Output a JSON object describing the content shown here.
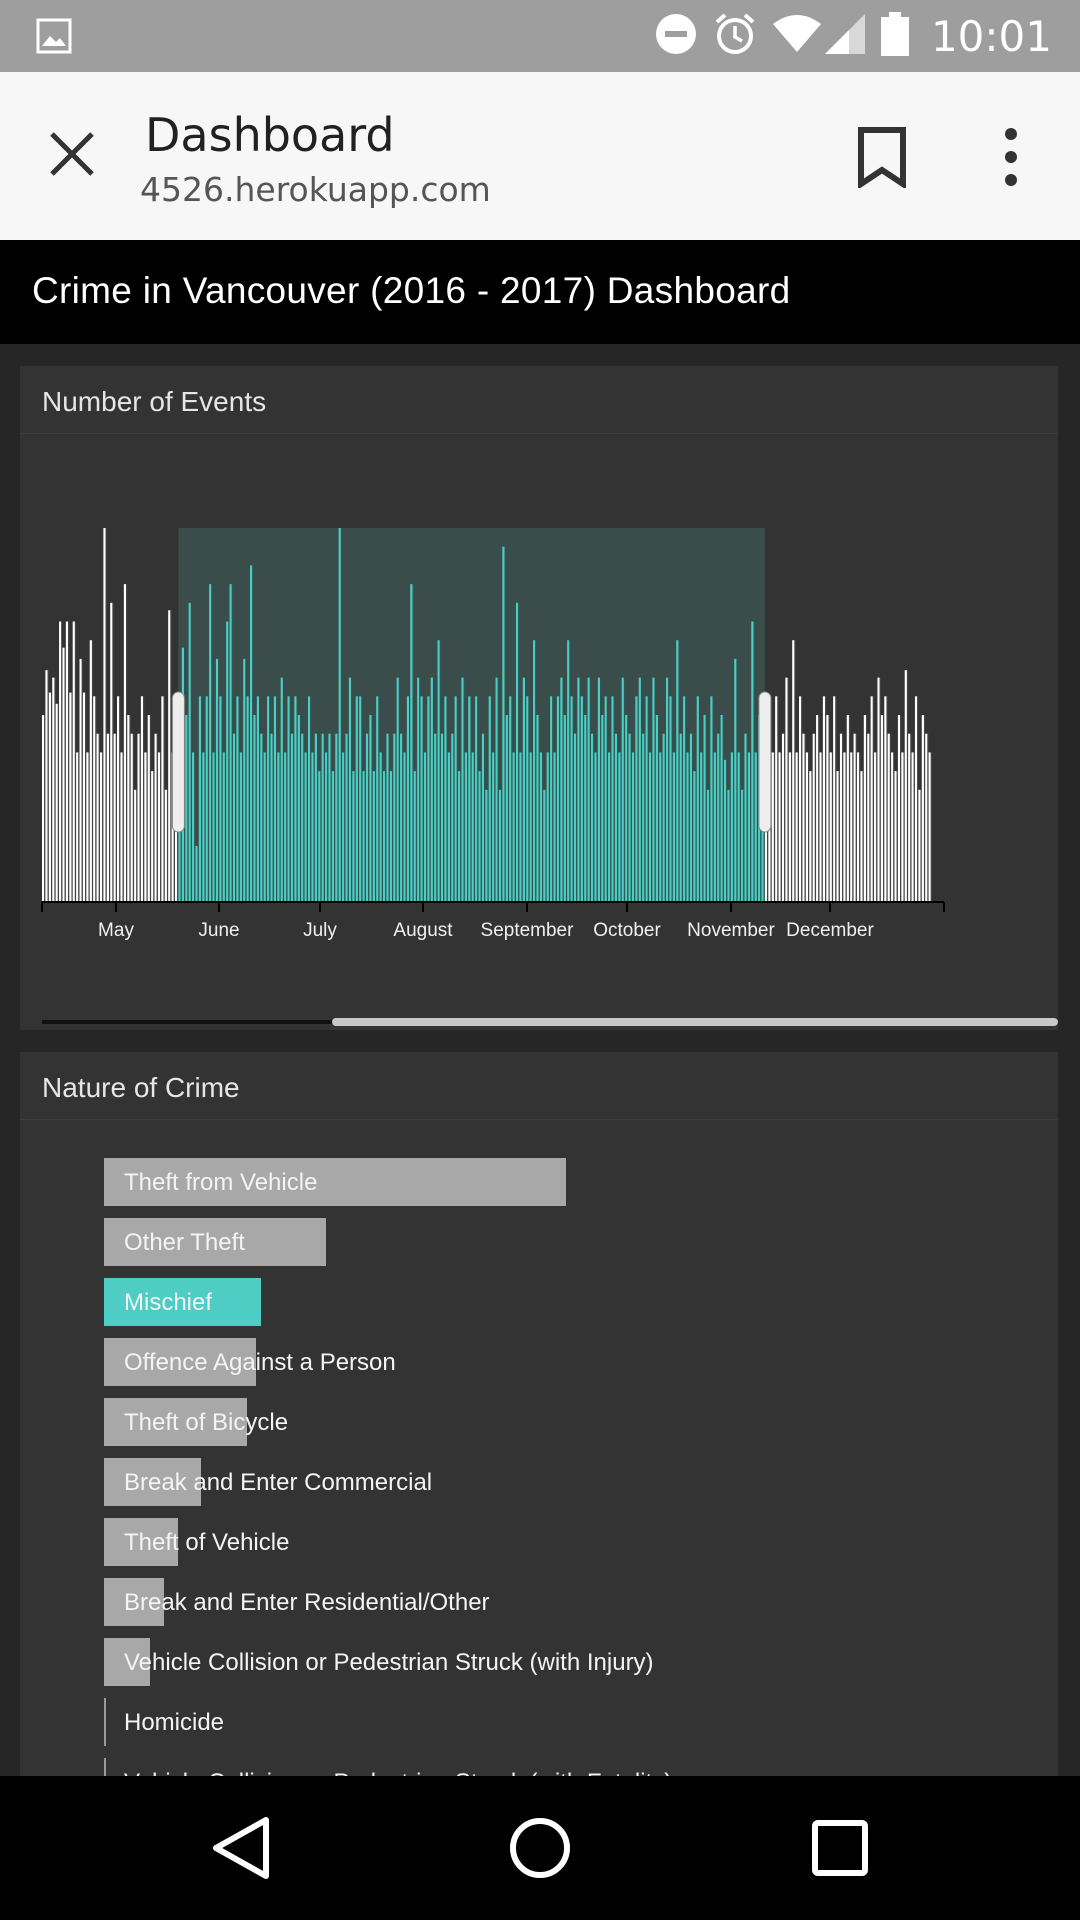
{
  "status_bar": {
    "time": "10:01",
    "icons": [
      "image-icon",
      "do-not-disturb-icon",
      "alarm-icon",
      "wifi-icon",
      "signal-icon",
      "battery-icon"
    ]
  },
  "browser": {
    "page_title": "Dashboard",
    "url": "4526.herokuapp.com",
    "icons": [
      "close-icon",
      "bookmark-icon",
      "overflow-menu-icon"
    ]
  },
  "app": {
    "title": "Crime in Vancouver (2016 - 2017) Dashboard"
  },
  "events_card": {
    "title": "Number of Events"
  },
  "nature_card": {
    "title": "Nature of Crime"
  },
  "colors": {
    "accent": "#4ecdc4",
    "bar_default": "#a8a8a8",
    "card_bg": "#333333",
    "page_bg": "#262626"
  },
  "chart_data": [
    {
      "type": "bar",
      "title": "Number of Events",
      "x_tick_labels": [
        "May",
        "June",
        "July",
        "August",
        "September",
        "October",
        "November",
        "December"
      ],
      "brush_selection": [
        "June",
        "late October"
      ],
      "daily_values_relative": [
        0.5,
        0.62,
        0.56,
        0.6,
        0.53,
        0.75,
        0.68,
        0.75,
        0.56,
        0.75,
        0.4,
        0.65,
        0.56,
        0.4,
        0.7,
        0.55,
        0.45,
        0.4,
        1.0,
        0.45,
        0.8,
        0.45,
        0.55,
        0.4,
        0.85,
        0.5,
        0.45,
        0.3,
        0.45,
        0.55,
        0.4,
        0.5,
        0.35,
        0.45,
        0.4,
        0.55,
        0.3,
        0.78,
        0.4,
        0.55,
        0.45,
        0.68,
        0.5,
        0.8,
        0.4,
        0.15,
        0.55,
        0.4,
        0.55,
        0.85,
        0.4,
        0.65,
        0.55,
        0.4,
        0.75,
        0.85,
        0.45,
        0.55,
        0.4,
        0.65,
        0.55,
        0.9,
        0.5,
        0.55,
        0.45,
        0.4,
        0.55,
        0.45,
        0.55,
        0.4,
        0.6,
        0.4,
        0.55,
        0.45,
        0.55,
        0.5,
        0.45,
        0.4,
        0.55,
        0.4,
        0.45,
        0.35,
        0.45,
        0.4,
        0.45,
        0.35,
        0.45,
        1.0,
        0.4,
        0.45,
        0.6,
        0.35,
        0.55,
        0.55,
        0.35,
        0.45,
        0.5,
        0.35,
        0.55,
        0.4,
        0.35,
        0.45,
        0.35,
        0.45,
        0.6,
        0.45,
        0.4,
        0.55,
        0.85,
        0.35,
        0.6,
        0.55,
        0.4,
        0.55,
        0.6,
        0.45,
        0.7,
        0.45,
        0.55,
        0.4,
        0.45,
        0.55,
        0.35,
        0.6,
        0.4,
        0.55,
        0.4,
        0.55,
        0.35,
        0.45,
        0.3,
        0.55,
        0.4,
        0.6,
        0.3,
        0.95,
        0.5,
        0.55,
        0.4,
        0.8,
        0.4,
        0.6,
        0.55,
        0.4,
        0.7,
        0.5,
        0.4,
        0.3,
        0.4,
        0.55,
        0.4,
        0.55,
        0.6,
        0.5,
        0.7,
        0.55,
        0.45,
        0.6,
        0.55,
        0.5,
        0.6,
        0.45,
        0.4,
        0.6,
        0.5,
        0.55,
        0.4,
        0.55,
        0.45,
        0.4,
        0.6,
        0.5,
        0.45,
        0.4,
        0.55,
        0.6,
        0.45,
        0.55,
        0.4,
        0.6,
        0.5,
        0.4,
        0.45,
        0.6,
        0.55,
        0.4,
        0.7,
        0.45,
        0.55,
        0.4,
        0.45,
        0.35,
        0.55,
        0.4,
        0.5,
        0.3,
        0.55,
        0.4,
        0.45,
        0.5,
        0.38,
        0.3,
        0.4,
        0.65,
        0.4,
        0.3,
        0.45,
        0.4,
        0.75,
        0.4,
        0.5,
        0.45,
        0.4,
        0.35,
        0.4,
        0.55,
        0.4,
        0.45,
        0.6,
        0.4,
        0.7,
        0.4,
        0.55,
        0.45,
        0.4,
        0.35,
        0.45,
        0.5,
        0.4,
        0.55,
        0.5,
        0.4,
        0.55,
        0.35,
        0.45,
        0.4,
        0.5,
        0.4,
        0.45,
        0.4,
        0.35,
        0.5,
        0.45,
        0.55,
        0.4,
        0.6,
        0.5,
        0.55,
        0.45,
        0.4,
        0.35,
        0.5,
        0.4,
        0.62,
        0.45,
        0.4,
        0.55,
        0.3,
        0.5,
        0.45,
        0.4
      ]
    },
    {
      "type": "bar",
      "orientation": "horizontal",
      "title": "Nature of Crime",
      "selected_category": "Mischief",
      "categories": [
        {
          "label": "Theft from Vehicle",
          "value": 100
        },
        {
          "label": "Other Theft",
          "value": 48
        },
        {
          "label": "Mischief",
          "value": 34
        },
        {
          "label": "Offence Against a Person",
          "value": 33
        },
        {
          "label": "Theft of Bicycle",
          "value": 31
        },
        {
          "label": "Break and Enter Commercial",
          "value": 21
        },
        {
          "label": "Theft of Vehicle",
          "value": 16
        },
        {
          "label": "Break and Enter Residential/Other",
          "value": 13
        },
        {
          "label": "Vehicle Collision or Pedestrian Struck (with Injury)",
          "value": 10
        },
        {
          "label": "Homicide",
          "value": 0.3
        },
        {
          "label": "Vehicle Collision or Pedestrian Struck (with Fatality)",
          "value": 0.3
        }
      ]
    }
  ]
}
